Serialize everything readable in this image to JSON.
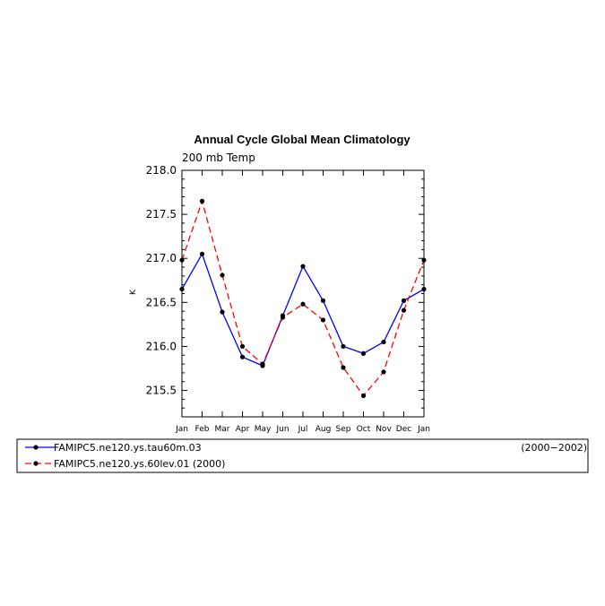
{
  "chart_data": {
    "type": "line",
    "title": "Annual Cycle Global Mean Climatology",
    "subtitle": "200 mb Temp",
    "ylabel": "K",
    "xlabel": "",
    "categories": [
      "Jan",
      "Feb",
      "Mar",
      "Apr",
      "May",
      "Jun",
      "Jul",
      "Aug",
      "Sep",
      "Oct",
      "Nov",
      "Dec",
      "Jan"
    ],
    "ylim": [
      215.2,
      218.0
    ],
    "yticks": [
      215.5,
      216.0,
      216.5,
      217.0,
      217.5,
      218.0
    ],
    "ytick_labels": [
      "215.5",
      "216.0",
      "216.5",
      "217.0",
      "217.5",
      "218.0"
    ],
    "grid": false,
    "series": [
      {
        "name": "FAMIPC5.ne120.ys.tau60m.03",
        "period": "(2000−2002)",
        "color": "#0000ff",
        "dash": "solid",
        "values": [
          216.65,
          217.05,
          216.39,
          215.88,
          215.78,
          216.35,
          216.91,
          216.52,
          216.0,
          215.92,
          216.05,
          216.52,
          216.65
        ]
      },
      {
        "name": "FAMIPC5.ne120.ys.60lev.01 (2000)",
        "period": "",
        "color": "#ff0000",
        "dash": "dashed",
        "values": [
          216.98,
          217.65,
          216.81,
          216.0,
          215.8,
          216.33,
          216.48,
          216.3,
          215.76,
          215.44,
          215.71,
          216.41,
          216.98
        ]
      }
    ],
    "marker_color": "#000000"
  }
}
